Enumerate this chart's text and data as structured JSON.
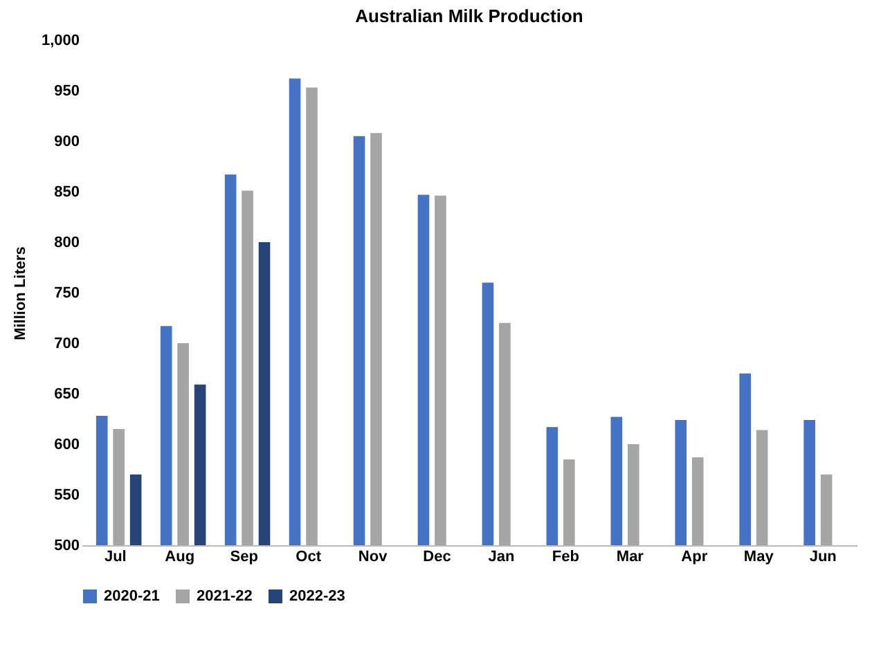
{
  "chart_data": {
    "type": "bar",
    "title": "Australian Milk Production",
    "ylabel": "Million Liters",
    "categories": [
      "Jul",
      "Aug",
      "Sep",
      "Oct",
      "Nov",
      "Dec",
      "Jan",
      "Feb",
      "Mar",
      "Apr",
      "May",
      "Jun"
    ],
    "series": [
      {
        "name": "2020-21",
        "color": "#4472c4",
        "values": [
          628,
          717,
          867,
          962,
          905,
          847,
          760,
          617,
          627,
          624,
          670,
          624
        ]
      },
      {
        "name": "2021-22",
        "color": "#a5a5a5",
        "values": [
          615,
          700,
          851,
          953,
          908,
          846,
          720,
          585,
          600,
          587,
          614,
          570
        ]
      },
      {
        "name": "2022-23",
        "color": "#264478",
        "values": [
          570,
          659,
          800,
          null,
          null,
          null,
          null,
          null,
          null,
          null,
          null,
          null
        ]
      }
    ],
    "ylim": [
      500,
      1000
    ],
    "yticks": [
      500,
      550,
      600,
      650,
      700,
      750,
      800,
      850,
      900,
      950,
      {
        "value": 1000,
        "label": "1,000"
      }
    ],
    "grid": false,
    "legend": "bottom"
  }
}
